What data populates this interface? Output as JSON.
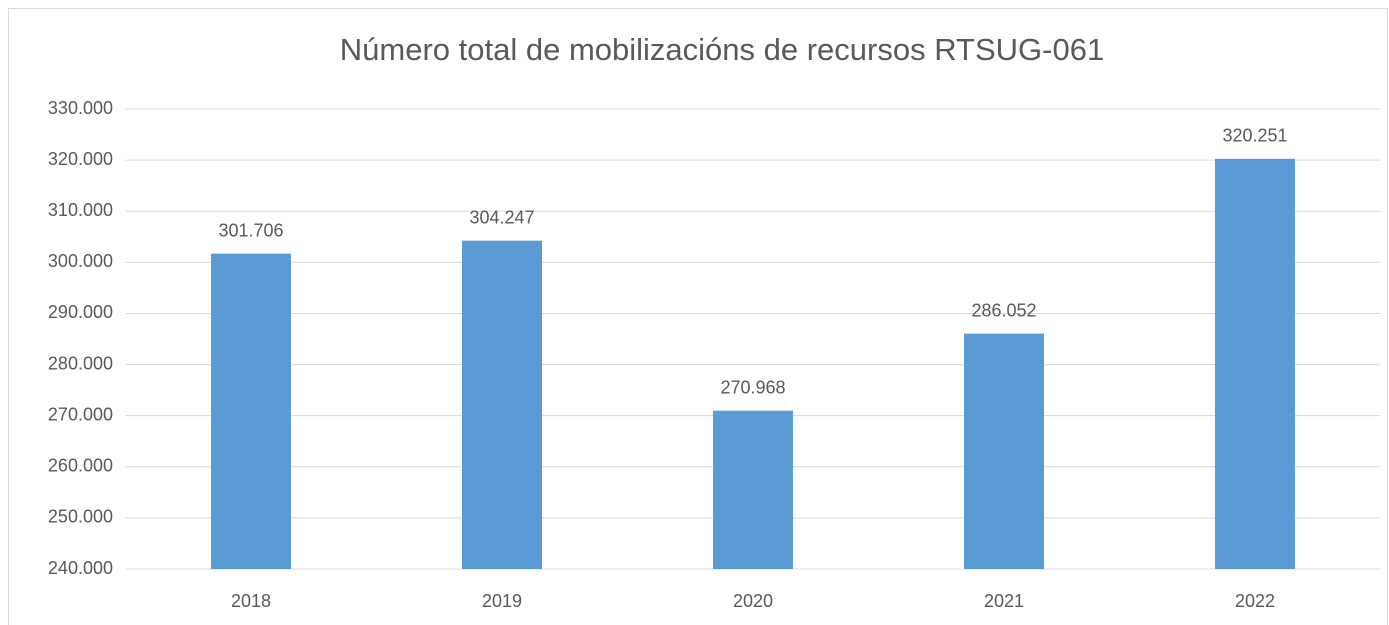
{
  "chart_data": {
    "type": "bar",
    "title": "Número total de mobilizacións de recursos RTSUG-061",
    "categories": [
      "2018",
      "2019",
      "2020",
      "2021",
      "2022"
    ],
    "values": [
      301706,
      304247,
      270968,
      286052,
      320251
    ],
    "value_labels": [
      "301.706",
      "304.247",
      "270.968",
      "286.052",
      "320.251"
    ],
    "color": "#5b9bd5",
    "ylim": [
      240000,
      330000
    ],
    "yticks": [
      {
        "value": 240000,
        "label": "240.000"
      },
      {
        "value": 250000,
        "label": "250.000"
      },
      {
        "value": 260000,
        "label": "260.000"
      },
      {
        "value": 270000,
        "label": "270.000"
      },
      {
        "value": 280000,
        "label": "280.000"
      },
      {
        "value": 290000,
        "label": "290.000"
      },
      {
        "value": 300000,
        "label": "300.000"
      },
      {
        "value": 310000,
        "label": "310.000"
      },
      {
        "value": 320000,
        "label": "320.000"
      },
      {
        "value": 330000,
        "label": "330.000"
      }
    ],
    "grid": true
  }
}
